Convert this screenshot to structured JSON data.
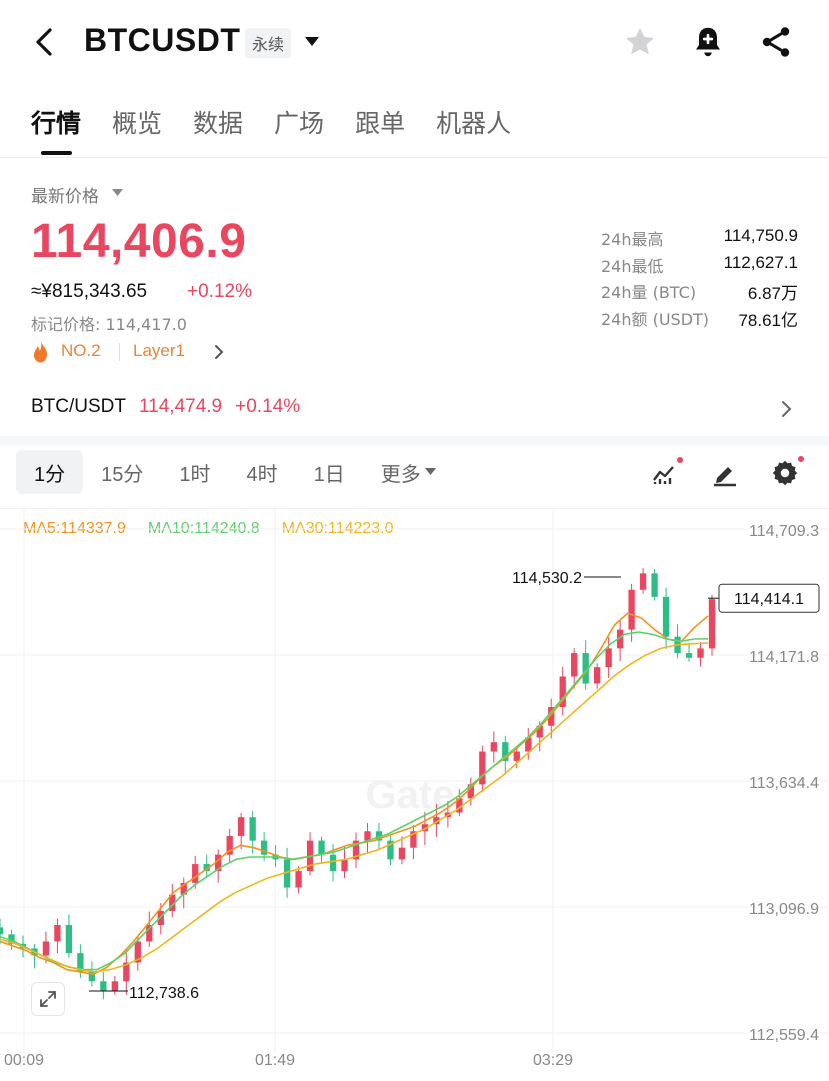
{
  "header": {
    "title": "BTCUSDT",
    "contract_type": "永续"
  },
  "tabs": [
    "行情",
    "概览",
    "数据",
    "广场",
    "跟单",
    "机器人"
  ],
  "price": {
    "label": "最新价格",
    "last": "114,406.9",
    "cny": "≈¥815,343.65",
    "change": "+0.12%",
    "mark_label": "标记价格:",
    "mark_value": "114,417.0",
    "rank": "NO.2",
    "sector": "Layer1"
  },
  "stats": [
    {
      "label": "24h最高",
      "value": "114,750.9"
    },
    {
      "label": "24h最低",
      "value": "112,627.1"
    },
    {
      "label": "24h量 (BTC)",
      "value": "6.87万"
    },
    {
      "label": "24h额 (USDT)",
      "value": "78.61亿"
    }
  ],
  "spot": {
    "pair": "BTC/USDT",
    "price": "114,474.9",
    "change": "+0.14%"
  },
  "intervals": [
    "1分",
    "15分",
    "1时",
    "4时",
    "1日",
    "更多"
  ],
  "active_interval": "1分",
  "ma": {
    "ma5": "MA5:114337.9",
    "ma10": "MA10:114240.8",
    "ma30": "MA30:114223.0"
  },
  "colors": {
    "up": "#e8475f",
    "down": "#2ebd85",
    "ma5": "#f0941f",
    "ma10": "#5fd16c",
    "ma30": "#f2b51e"
  },
  "chart_data": {
    "type": "candlestick",
    "y_ticks": [
      "114,709.3",
      "114,171.8",
      "113,634.4",
      "113,096.9",
      "112,559.4"
    ],
    "x_ticks": [
      "00:09",
      "01:49",
      "03:29"
    ],
    "ylim": [
      112559.4,
      114709.3
    ],
    "high_label": "114,530.2",
    "low_label": "112,738.6",
    "current_label": "114,414.1",
    "watermark": "Gate",
    "series": [
      {
        "name": "close",
        "values": [
          112980,
          112940,
          112920,
          112890,
          112950,
          113020,
          112900,
          112820,
          112780,
          112740,
          112780,
          112860,
          112950,
          113020,
          113080,
          113150,
          113200,
          113280,
          113250,
          113320,
          113400,
          113480,
          113380,
          113320,
          113300,
          113180,
          113250,
          113380,
          113320,
          113250,
          113300,
          113380,
          113420,
          113380,
          113300,
          113350,
          113420,
          113450,
          113480,
          113500,
          113560,
          113620,
          113760,
          113800,
          113720,
          113760,
          113820,
          113870,
          113950,
          114080,
          114180,
          114050,
          114120,
          114200,
          114280,
          114450,
          114520,
          114420,
          114250,
          114180,
          114160,
          114200,
          114410
        ]
      },
      {
        "name": "MA5",
        "values": [
          112950,
          112930,
          112910,
          112880,
          112860,
          112830,
          112820,
          112810,
          112840,
          112890,
          112950,
          113020,
          113090,
          113160,
          113200,
          113240,
          113280,
          113330,
          113360,
          113350,
          113330,
          113310,
          113300,
          113310,
          113320,
          113340,
          113360,
          113370,
          113380,
          113400,
          113420,
          113440,
          113470,
          113500,
          113540,
          113590,
          113650,
          113700,
          113740,
          113790,
          113840,
          113900,
          113970,
          114040,
          114110,
          114200,
          114300,
          114350,
          114330,
          114280,
          114240,
          114230,
          114290,
          114338
        ]
      },
      {
        "name": "MA10",
        "values": [
          112970,
          112950,
          112920,
          112890,
          112860,
          112840,
          112830,
          112830,
          112860,
          112900,
          112960,
          113020,
          113080,
          113140,
          113190,
          113230,
          113270,
          113300,
          113310,
          113310,
          113310,
          113300,
          113310,
          113320,
          113330,
          113350,
          113370,
          113390,
          113410,
          113440,
          113470,
          113500,
          113530,
          113570,
          113620,
          113670,
          113720,
          113770,
          113820,
          113880,
          113950,
          114020,
          114090,
          114160,
          114220,
          114260,
          114270,
          114260,
          114240,
          114230,
          114240,
          114241
        ]
      },
      {
        "name": "MA30",
        "values": [
          112960,
          112940,
          112910,
          112880,
          112850,
          112830,
          112820,
          112830,
          112850,
          112880,
          112920,
          112970,
          113020,
          113070,
          113120,
          113160,
          113190,
          113220,
          113240,
          113260,
          113280,
          113290,
          113300,
          113320,
          113340,
          113370,
          113400,
          113430,
          113470,
          113510,
          113560,
          113610,
          113660,
          113720,
          113780,
          113840,
          113900,
          113960,
          114020,
          114080,
          114130,
          114170,
          114200,
          114215,
          114220,
          114223
        ]
      }
    ]
  }
}
